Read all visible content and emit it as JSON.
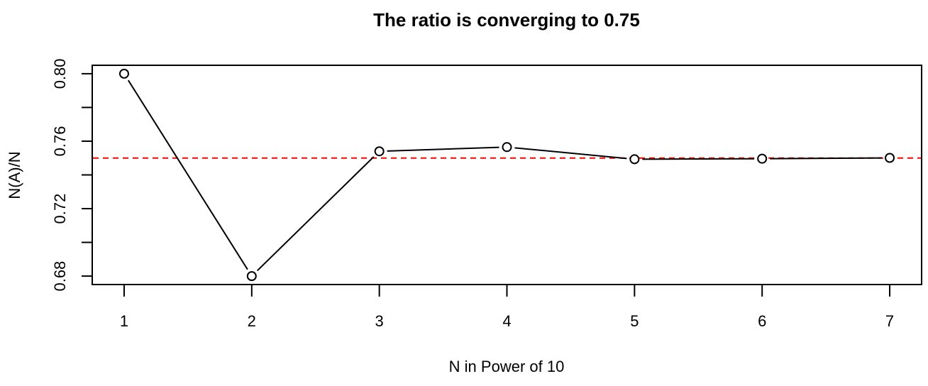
{
  "chart_data": {
    "type": "line",
    "title": "The ratio is converging to 0.75",
    "xlabel": "N in Power of 10",
    "ylabel": "N(A)/N",
    "x": [
      1,
      2,
      3,
      4,
      5,
      6,
      7
    ],
    "series": [
      {
        "name": "N(A)/N",
        "values": [
          0.8,
          0.68,
          0.754,
          0.7565,
          0.7493,
          0.7496,
          0.7501
        ],
        "line_color": "#000000",
        "marker": "open-circle"
      }
    ],
    "reference_line": {
      "y": 0.75,
      "color": "#ff0000",
      "style": "dashed"
    },
    "xlim": [
      0.75,
      7.25
    ],
    "ylim": [
      0.675,
      0.805
    ],
    "x_ticks": [
      1,
      2,
      3,
      4,
      5,
      6,
      7
    ],
    "x_tick_labels": [
      "1",
      "2",
      "3",
      "4",
      "5",
      "6",
      "7"
    ],
    "y_ticks": [
      0.68,
      0.7,
      0.72,
      0.74,
      0.76,
      0.78,
      0.8
    ],
    "y_tick_labels": [
      "0.68",
      "",
      "0.72",
      "",
      "0.76",
      "",
      "0.80"
    ],
    "grid": false,
    "legend": "none"
  }
}
